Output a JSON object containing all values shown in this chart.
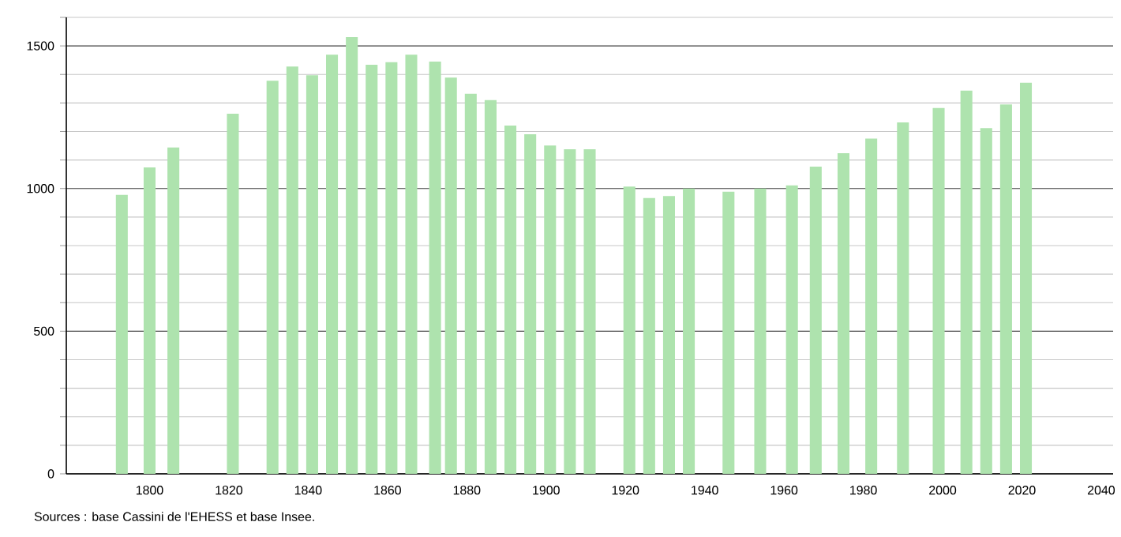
{
  "chart_data": {
    "type": "bar",
    "x": [
      1793,
      1800,
      1806,
      1821,
      1831,
      1836,
      1841,
      1846,
      1851,
      1856,
      1861,
      1866,
      1872,
      1876,
      1881,
      1886,
      1891,
      1896,
      1901,
      1906,
      1911,
      1921,
      1926,
      1931,
      1936,
      1946,
      1954,
      1962,
      1968,
      1975,
      1982,
      1990,
      1999,
      2006,
      2011,
      2016,
      2021
    ],
    "values": [
      978,
      1074,
      1144,
      1262,
      1378,
      1428,
      1397,
      1469,
      1531,
      1434,
      1443,
      1469,
      1445,
      1389,
      1332,
      1310,
      1221,
      1190,
      1151,
      1138,
      1138,
      1007,
      967,
      974,
      1000,
      989,
      1000,
      1011,
      1077,
      1124,
      1175,
      1232,
      1282,
      1343,
      1212,
      1295,
      1371
    ],
    "color": "#aee3ae",
    "xlim": [
      1779,
      2043
    ],
    "xticks": [
      1800,
      1820,
      1840,
      1860,
      1880,
      1900,
      1920,
      1940,
      1960,
      1980,
      2000,
      2020,
      2040
    ],
    "ylim": [
      0,
      1600
    ],
    "yticks": [
      0,
      {
        "value": 100,
        "label": null
      },
      {
        "value": 200,
        "label": null
      },
      {
        "value": 300,
        "label": null
      },
      {
        "value": 400,
        "label": null
      },
      500,
      {
        "value": 600,
        "label": null
      },
      {
        "value": 700,
        "label": null
      },
      {
        "value": 800,
        "label": null
      },
      {
        "value": 900,
        "label": null
      },
      1000,
      {
        "value": 1100,
        "label": null
      },
      {
        "value": 1200,
        "label": null
      },
      {
        "value": 1300,
        "label": null
      },
      {
        "value": 1400,
        "label": null
      },
      1500,
      {
        "value": 1600,
        "label": null
      }
    ],
    "grid": "y",
    "annotations": [
      "Sources : base Cassini de l'EHESS et base Insee."
    ]
  }
}
